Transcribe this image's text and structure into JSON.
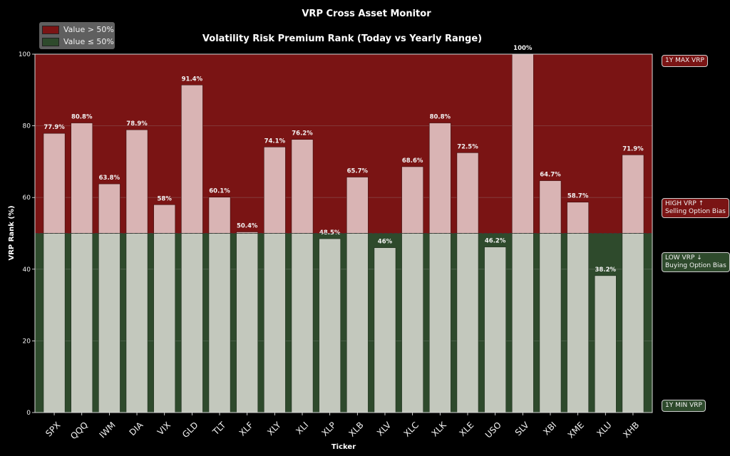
{
  "suptitle": "VRP Cross Asset Monitor",
  "legend": [
    {
      "label": "Value > 50%",
      "color": "#7a1414"
    },
    {
      "label": "Value ≤ 50%",
      "color": "#2e4a2c"
    }
  ],
  "side_labels": {
    "max": "1Y MAX VRP",
    "high_line1": "HIGH VRP ↑",
    "high_line2": "Selling Option Bias",
    "low_line1": "LOW VRP ↓",
    "low_line2": "Buying Option Bias",
    "min": "1Y MIN VRP"
  },
  "colors": {
    "background": "#000000",
    "high_zone": "#7a1414",
    "low_zone": "#2e4a2c",
    "bar_high": "#d9b4b4",
    "bar_low": "#c3c8bd",
    "high_label_bg": "#7a1414",
    "low_label_bg": "#2e4a2c"
  },
  "chart_data": {
    "type": "bar",
    "title": "Volatility Risk Premium Rank (Today vs Yearly Range)",
    "xlabel": "Ticker",
    "ylabel": "VRP Rank (%)",
    "ylim": [
      0,
      100
    ],
    "yticks": [
      0,
      20,
      40,
      60,
      80,
      100
    ],
    "threshold": 50,
    "grid": true,
    "legend_position": "top-left",
    "categories": [
      "SPX",
      "QQQ",
      "IWM",
      "DIA",
      "VIX",
      "GLD",
      "TLT",
      "XLF",
      "XLY",
      "XLI",
      "XLP",
      "XLB",
      "XLV",
      "XLC",
      "XLK",
      "XLE",
      "USO",
      "SLV",
      "XBI",
      "XME",
      "XLU",
      "XHB"
    ],
    "values": [
      77.9,
      80.8,
      63.8,
      78.9,
      58,
      91.4,
      60.1,
      50.4,
      74.1,
      76.2,
      48.5,
      65.7,
      46,
      68.6,
      80.8,
      72.5,
      46.2,
      100,
      64.7,
      58.7,
      38.2,
      71.9
    ],
    "value_labels": [
      "77.9%",
      "80.8%",
      "63.8%",
      "78.9%",
      "58%",
      "91.4%",
      "60.1%",
      "50.4%",
      "74.1%",
      "76.2%",
      "48.5%",
      "65.7%",
      "46%",
      "68.6%",
      "80.8%",
      "72.5%",
      "46.2%",
      "100%",
      "64.7%",
      "58.7%",
      "38.2%",
      "71.9%"
    ]
  }
}
